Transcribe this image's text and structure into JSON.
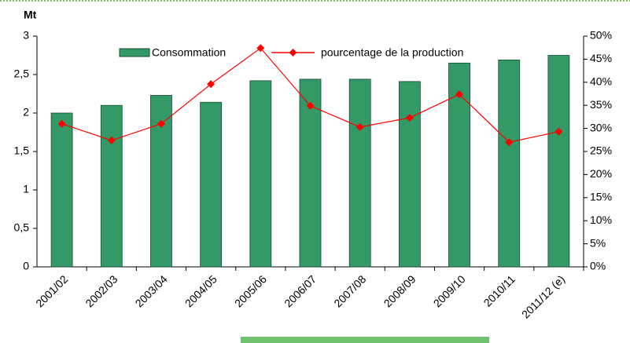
{
  "chart_data": {
    "type": "bar-line",
    "y_label": "Mt",
    "categories": [
      "2001/02",
      "2002/03",
      "2003/04",
      "2004/05",
      "2005/06",
      "2006/07",
      "2007/08",
      "2008/09",
      "2009/10",
      "2010/11",
      "2011/12 (e)"
    ],
    "series": [
      {
        "name": "Consommation",
        "type": "bar",
        "color": "#339966",
        "values": [
          2.0,
          2.1,
          2.23,
          2.14,
          2.42,
          2.44,
          2.44,
          2.41,
          2.65,
          2.69,
          2.75
        ]
      },
      {
        "name": "pourcentage de la production",
        "type": "line",
        "axis": "y2",
        "color": "#ff0000",
        "values": [
          31,
          27.4,
          31,
          39.6,
          47.4,
          34.9,
          30.3,
          32.3,
          37.4,
          27,
          29.3
        ]
      }
    ],
    "ylim": [
      0,
      3
    ],
    "yticks": [
      0,
      {
        "value": 0.5,
        "label": "0,5"
      },
      1,
      {
        "value": 1.5,
        "label": "1,5"
      },
      2,
      {
        "value": 2.5,
        "label": "2,5"
      },
      3
    ],
    "y2lim": [
      0,
      50
    ],
    "y2ticks": [
      {
        "value": 0,
        "label": "0%"
      },
      {
        "value": 5,
        "label": "5%"
      },
      {
        "value": 10,
        "label": "10%"
      },
      {
        "value": 15,
        "label": "15%"
      },
      {
        "value": 20,
        "label": "20%"
      },
      {
        "value": 25,
        "label": "25%"
      },
      {
        "value": 30,
        "label": "30%"
      },
      {
        "value": 35,
        "label": "35%"
      },
      {
        "value": 40,
        "label": "40%"
      },
      {
        "value": 45,
        "label": "45%"
      },
      {
        "value": 50,
        "label": "50%"
      }
    ],
    "grid": false,
    "legend": "top"
  }
}
